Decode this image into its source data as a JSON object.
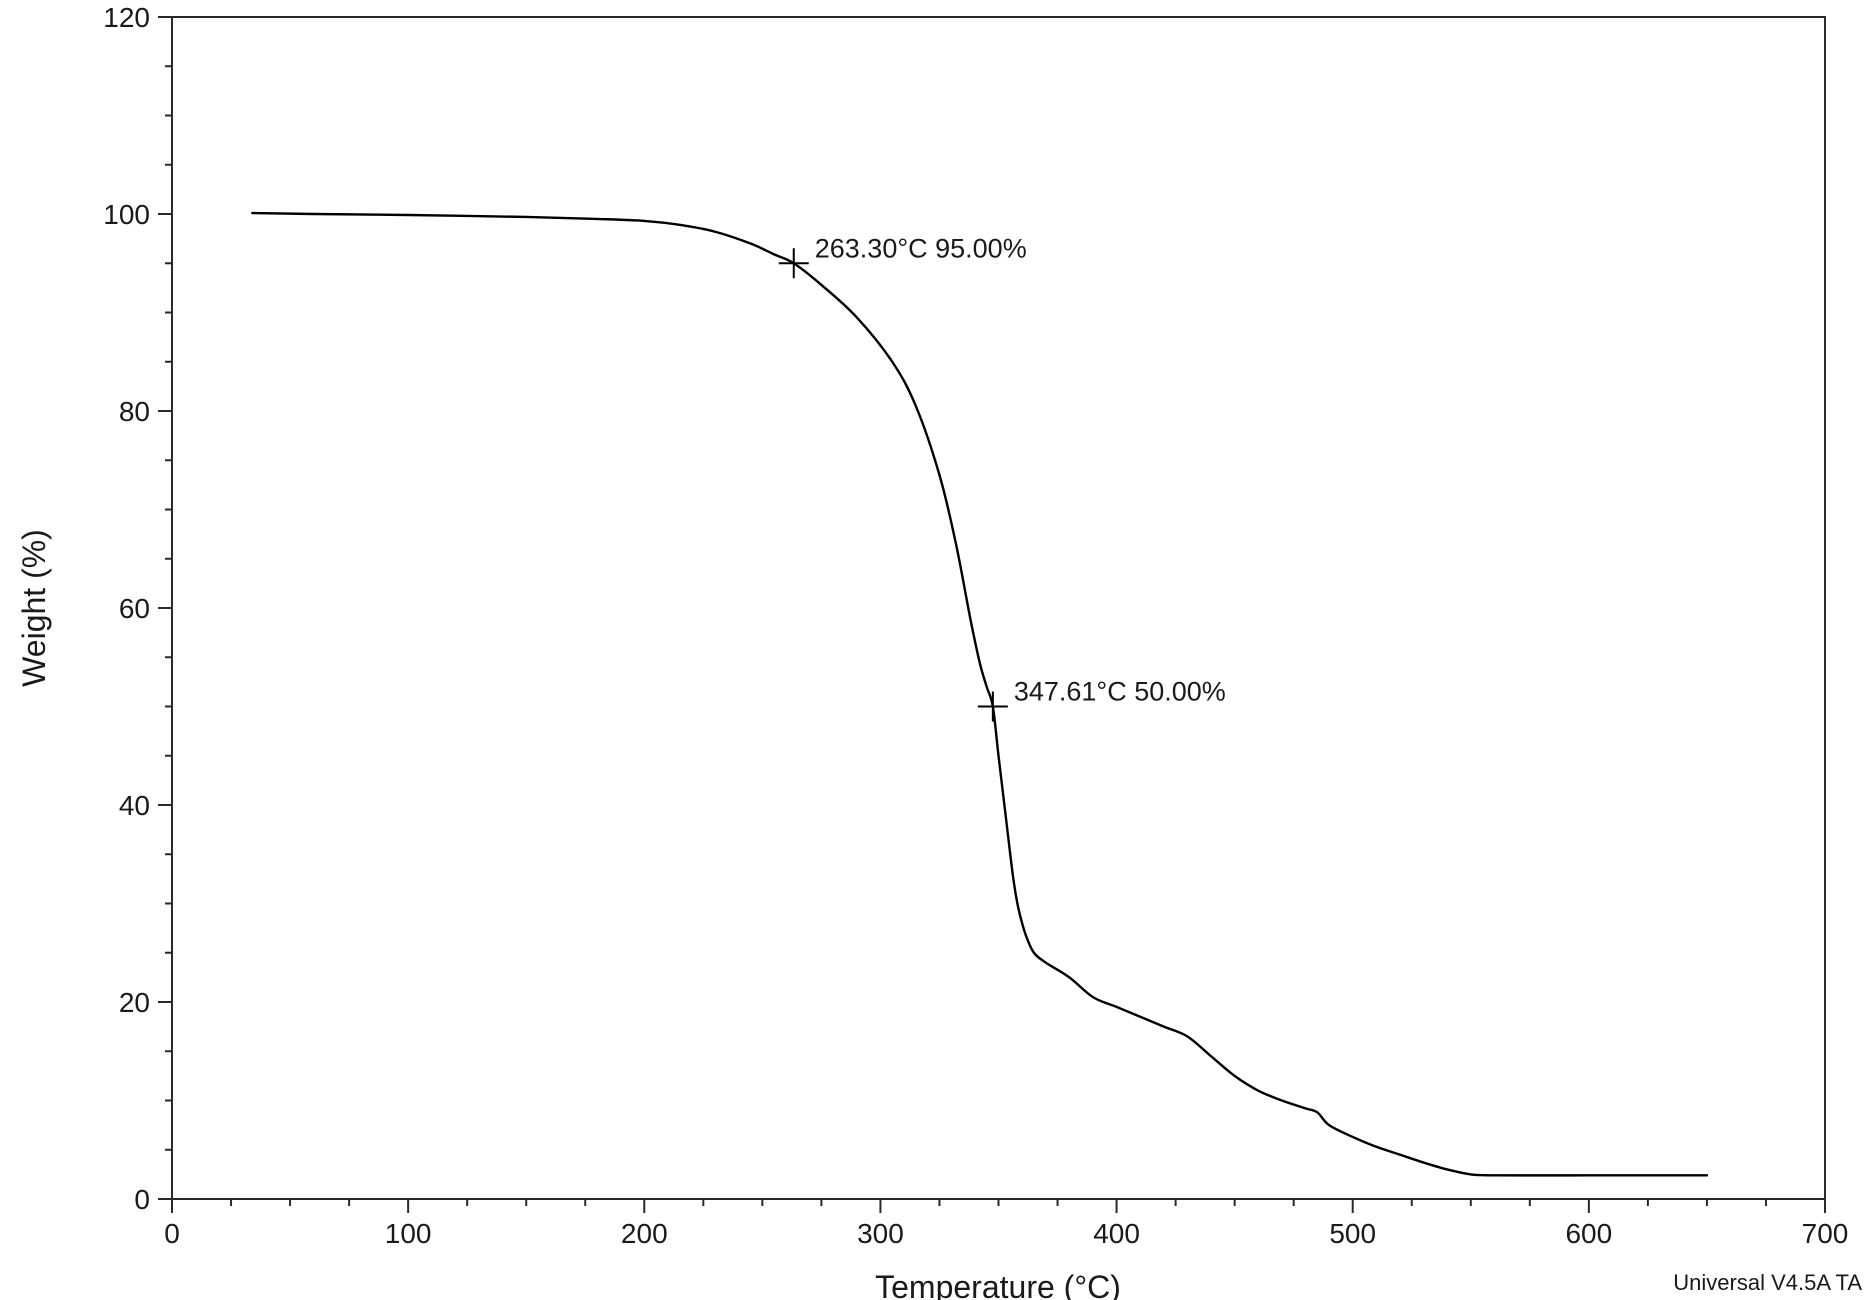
{
  "chart_data": {
    "type": "line",
    "xlabel": "Temperature (°C)",
    "ylabel": "Weight (%)",
    "xlim": [
      0,
      700
    ],
    "ylim": [
      0,
      120
    ],
    "x_ticks": [
      0,
      100,
      200,
      300,
      400,
      500,
      600,
      700
    ],
    "y_ticks": [
      0,
      20,
      40,
      60,
      80,
      100,
      120
    ],
    "grid": false,
    "line_color": "#000000",
    "series": [
      {
        "x": [
          34,
          60,
          100,
          150,
          180,
          200,
          215,
          230,
          245,
          255,
          263.3,
          275,
          290,
          305,
          315,
          325,
          332,
          338,
          342,
          345,
          347.61,
          350,
          353,
          356,
          358,
          360,
          362,
          365,
          370,
          380,
          390,
          400,
          410,
          420,
          430,
          440,
          450,
          460,
          470,
          480,
          485,
          490,
          500,
          510,
          520,
          530,
          540,
          550,
          560,
          600,
          650
        ],
        "y": [
          100.1,
          100.0,
          99.9,
          99.7,
          99.5,
          99.3,
          98.9,
          98.2,
          97.0,
          95.9,
          95.0,
          92.8,
          89.5,
          85.0,
          80.5,
          73.5,
          66.5,
          59.0,
          54.5,
          52.0,
          50.0,
          45.0,
          39.0,
          33.0,
          30.0,
          28.0,
          26.5,
          25.0,
          24.0,
          22.5,
          20.5,
          19.5,
          18.5,
          17.5,
          16.5,
          14.5,
          12.5,
          11.0,
          10.0,
          9.2,
          8.8,
          7.5,
          6.3,
          5.3,
          4.5,
          3.7,
          3.0,
          2.5,
          2.4,
          2.4,
          2.4
        ]
      }
    ],
    "annotations": [
      {
        "x": 263.3,
        "y": 95.0,
        "text": "263.30°C 95.00%"
      },
      {
        "x": 347.61,
        "y": 50.0,
        "text": "347.61°C 50.00%"
      }
    ],
    "footer": "Universal V4.5A TA"
  }
}
